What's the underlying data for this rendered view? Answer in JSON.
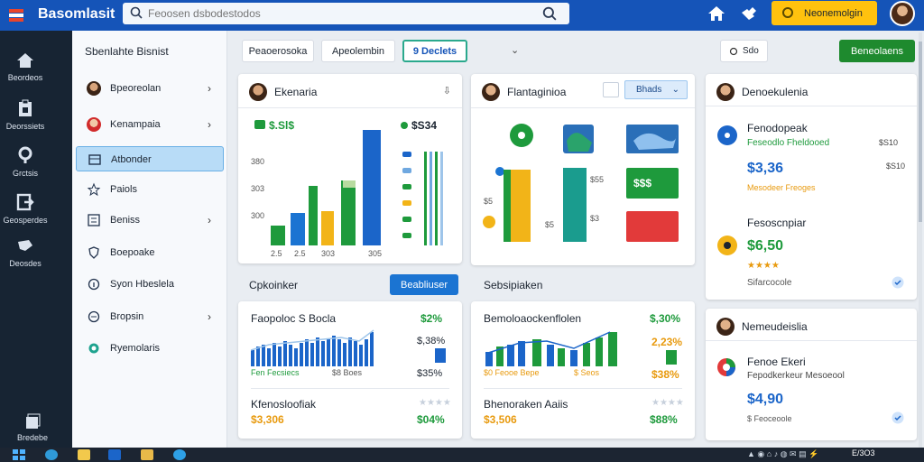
{
  "app": {
    "title": "Basomlasit"
  },
  "search": {
    "placeholder": "Feoosen dsbodestodos"
  },
  "header": {
    "upgrade_label": "Neonemolgin"
  },
  "rail": {
    "items": [
      "Beordeos",
      "Deorssiets",
      "Grctsis",
      "Geosperdes",
      "Deosdes"
    ],
    "footer": "Bredebe"
  },
  "nav": {
    "title": "Sbenlahte Bisnist",
    "items": [
      {
        "label": "Bpeoreolan",
        "chevron": "›"
      },
      {
        "label": "Kenampaia",
        "chevron": "›"
      },
      {
        "label": "Atbonder",
        "chevron": ""
      },
      {
        "label": "Paiols",
        "chevron": ""
      },
      {
        "label": "Beniss",
        "chevron": "›"
      },
      {
        "label": "Boepoake",
        "chevron": ""
      },
      {
        "label": "Syon Hbeslela",
        "chevron": ""
      },
      {
        "label": "Bropsin",
        "chevron": "›"
      },
      {
        "label": "Ryemolaris",
        "chevron": ""
      }
    ]
  },
  "toolbar": {
    "tab1": "Peaoerosoka",
    "tab2": "Apeolembin",
    "tab3": "9 Declets",
    "dropdown_icon": "⌄",
    "share_label": "Sdo",
    "new_label": "Beneolaens"
  },
  "card1": {
    "title": "Ekenaria",
    "value_label": "$.Sl$",
    "legend_value": "$S34",
    "y_ticks": [
      "380",
      "303",
      "300"
    ],
    "x_ticks": [
      "2.5",
      "2.5",
      "303",
      "305"
    ],
    "colors": {
      "green": "#1e9a3c",
      "blue": "#1b65c9",
      "yellow": "#f2b418",
      "lightblue": "#6fa8e0"
    }
  },
  "card2": {
    "title": "Flantaginioa",
    "filter_label": "Bhads",
    "tile_text": "$$$",
    "labels": [
      "$5",
      "$55",
      "$3",
      "$5"
    ]
  },
  "card3": {
    "title": "Denoekulenia",
    "item1": {
      "name": "Fenodopeak",
      "sub": "Feseodlo Fheldooed",
      "amount": "$3,36",
      "meta": "$S10",
      "tag": "Mesodeer Freoges"
    },
    "item2": {
      "name": "Fesoscnpiar",
      "amount": "$6,50",
      "rating": "★★★★",
      "sub": "Sifarcocole"
    }
  },
  "card4": {
    "title": "Nemeudeislia",
    "item": {
      "name": "Fenoe Ekeri",
      "sub": "Fepodkerkeur Mesoeool",
      "amount": "$4,90",
      "meta": "$ Feoceoole"
    }
  },
  "section_left": {
    "title": "Cpkoinker",
    "button": "Beabliuser",
    "row1": {
      "label": "Faopoloc S Bocla",
      "value": "$2%"
    },
    "right_values": [
      "$,38%",
      "$35%"
    ],
    "x_labels": [
      "Fen Fecsiecs",
      "$8 Boes"
    ],
    "row2": {
      "label": "Kfenosloofiak",
      "left_value": "$3,306",
      "right_value": "$04%"
    }
  },
  "section_right": {
    "title": "Sebsipiaken",
    "row1": {
      "label": "Bemoloaockenflolen",
      "value": "$,30%"
    },
    "right_values": [
      "2,23%",
      "$38%"
    ],
    "x_labels": [
      "$0 Feooe Bepe",
      "$ Seos"
    ],
    "row2": {
      "label": "Bhenoraken Aaiis",
      "left_value": "$3,506",
      "right_value": "$88%"
    }
  },
  "taskbar": {
    "clock": "E/3O3"
  }
}
